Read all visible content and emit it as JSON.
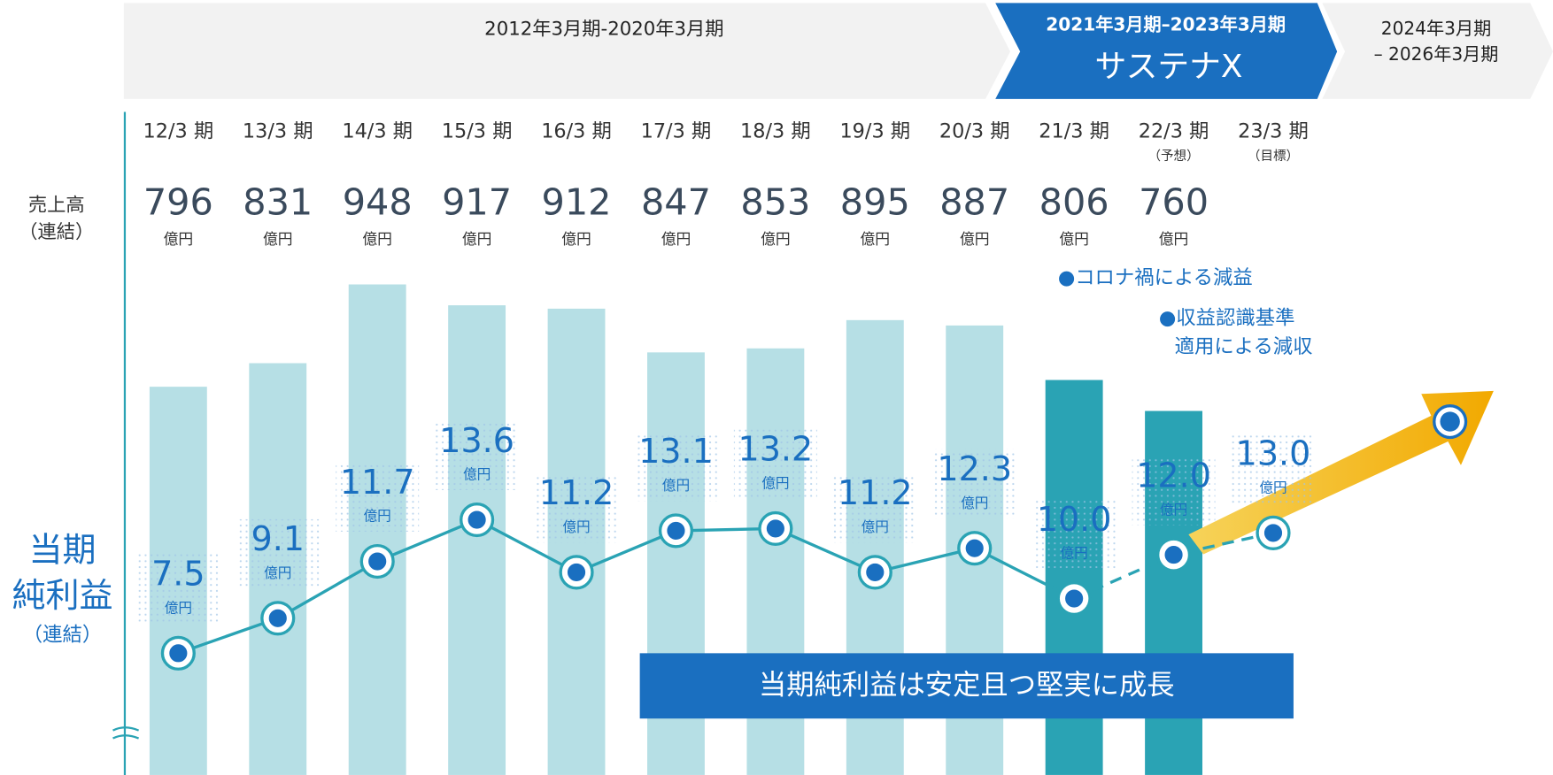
{
  "chart_data": {
    "type": "combo",
    "phases": [
      [
        "2012年3月期-2020年3月期"
      ],
      [
        "2021年3月期–2023年3月期",
        "サステナX"
      ],
      [
        "2024年3月期",
        "– 2026年3月期"
      ]
    ],
    "categories": [
      "12/3 期",
      "13/3 期",
      "14/3 期",
      "15/3 期",
      "16/3 期",
      "17/3 期",
      "18/3 期",
      "19/3 期",
      "20/3 期",
      "21/3 期",
      "22/3 期",
      "23/3 期"
    ],
    "category_notes": [
      null,
      null,
      null,
      null,
      null,
      null,
      null,
      null,
      null,
      null,
      "（予想）",
      "（目標）"
    ],
    "sales": {
      "name": [
        "売上高",
        "（連結）"
      ],
      "unit": "億円",
      "values": [
        796,
        831,
        948,
        917,
        912,
        847,
        853,
        895,
        887,
        806,
        760,
        null
      ],
      "colors": [
        "#b6dfe5",
        "#b6dfe5",
        "#b6dfe5",
        "#b6dfe5",
        "#b6dfe5",
        "#b6dfe5",
        "#b6dfe5",
        "#b6dfe5",
        "#b6dfe5",
        "#2aa3b4",
        "#2aa3b4",
        null
      ]
    },
    "profit": {
      "name": [
        "当期",
        "純利益",
        "（連結）"
      ],
      "unit": "億円",
      "color": "#2aa3b4",
      "values": [
        7.5,
        9.1,
        11.7,
        13.6,
        11.2,
        13.1,
        13.2,
        11.2,
        12.3,
        10.0,
        12.0,
        13.0
      ],
      "value_labels": [
        "7.5",
        "9.1",
        "11.7",
        "13.6",
        "11.2",
        "13.1",
        "13.2",
        "11.2",
        "12.3",
        "10.0",
        "12.0",
        "13.0"
      ],
      "dashed_from": 9
    },
    "annotations": [
      [
        "●コロナ禍による減益"
      ],
      [
        "●収益認識基準",
        "適用による減収"
      ]
    ],
    "banner": "当期純利益は安定且つ堅実に成長"
  }
}
